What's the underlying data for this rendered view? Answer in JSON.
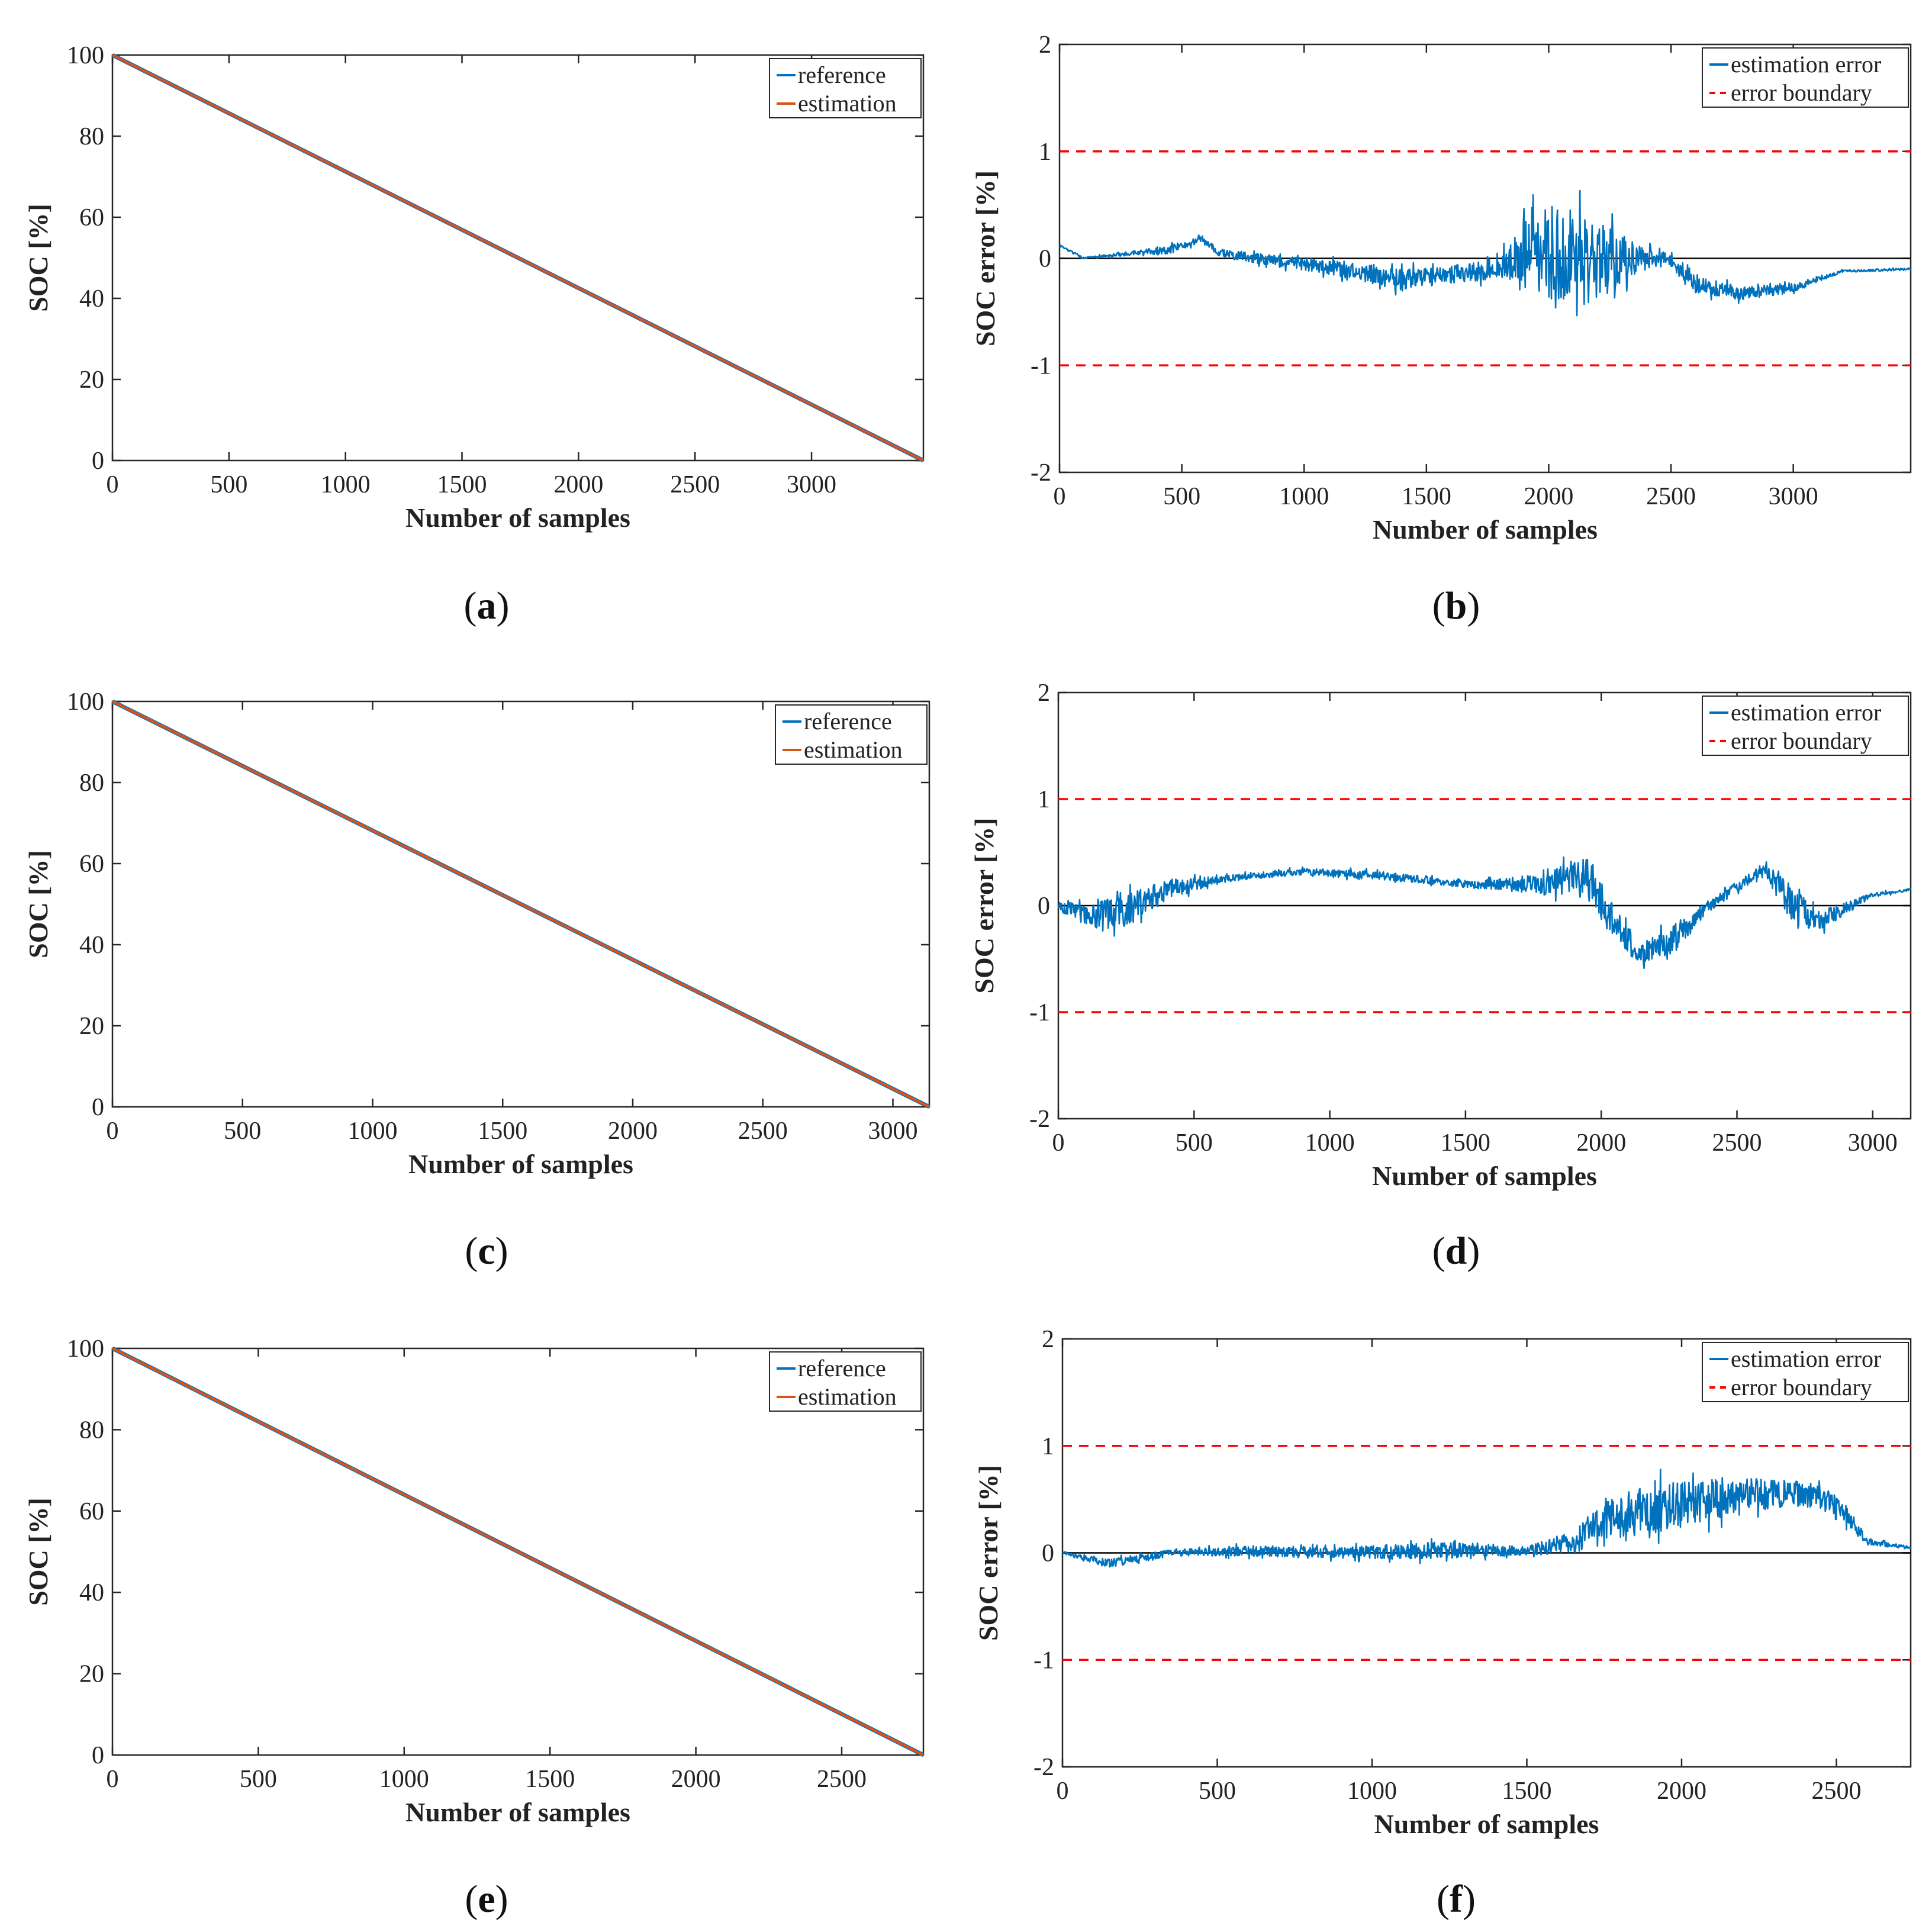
{
  "figure": {
    "panel_labels": [
      "a",
      "b",
      "c",
      "d",
      "e",
      "f"
    ],
    "colors": {
      "reference": "#0072BD",
      "estimation": "#D95319",
      "error": "#0072BD",
      "boundary": "#FF0000",
      "zero_line": "#000000"
    }
  },
  "chart_data": [
    {
      "id": "a",
      "type": "line",
      "xlabel": "Number of samples",
      "ylabel": "SOC [%]",
      "xlim": [
        0,
        3480
      ],
      "ylim": [
        0,
        100
      ],
      "xticks": [
        0,
        500,
        1000,
        1500,
        2000,
        2500,
        3000
      ],
      "yticks": [
        0,
        20,
        40,
        60,
        80,
        100
      ],
      "legend": {
        "position": "top-right",
        "entries": [
          "reference",
          "estimation"
        ]
      },
      "series": [
        {
          "name": "reference",
          "color": "#0072BD",
          "x": [
            0,
            3480
          ],
          "y": [
            100,
            0
          ]
        },
        {
          "name": "estimation",
          "color": "#D95319",
          "x": [
            0,
            3480
          ],
          "y": [
            100,
            0
          ]
        }
      ]
    },
    {
      "id": "b",
      "type": "line",
      "xlabel": "Number of samples",
      "ylabel": "SOC error [%]",
      "xlim": [
        0,
        3480
      ],
      "ylim": [
        -2,
        2
      ],
      "xticks": [
        0,
        500,
        1000,
        1500,
        2000,
        2500,
        3000
      ],
      "yticks": [
        -2,
        -1,
        0,
        1,
        2
      ],
      "legend": {
        "position": "top-right",
        "entries": [
          "estimation error",
          "error boundary"
        ]
      },
      "boundaries": [
        1,
        -1
      ],
      "zero_line": true,
      "series": [
        {
          "name": "estimation error",
          "color": "#0072BD",
          "x": [
            0,
            100,
            300,
            450,
            580,
            650,
            800,
            1000,
            1200,
            1400,
            1600,
            1800,
            1900,
            2050,
            2200,
            2350,
            2480,
            2600,
            2800,
            3000,
            3200,
            3480
          ],
          "y": [
            0.12,
            0.0,
            0.05,
            0.08,
            0.18,
            0.05,
            0.0,
            -0.05,
            -0.12,
            -0.2,
            -0.15,
            -0.1,
            0.0,
            0.05,
            -0.05,
            0.0,
            0.02,
            -0.25,
            -0.33,
            -0.28,
            -0.12,
            -0.1
          ],
          "noise": [
            0.01,
            0.01,
            0.02,
            0.04,
            0.03,
            0.03,
            0.05,
            0.06,
            0.08,
            0.1,
            0.08,
            0.1,
            0.35,
            0.45,
            0.4,
            0.15,
            0.06,
            0.08,
            0.06,
            0.04,
            0.01,
            0.01
          ]
        }
      ]
    },
    {
      "id": "c",
      "type": "line",
      "xlabel": "Number of samples",
      "ylabel": "SOC [%]",
      "xlim": [
        0,
        3140
      ],
      "ylim": [
        0,
        100
      ],
      "xticks": [
        0,
        500,
        1000,
        1500,
        2000,
        2500,
        3000
      ],
      "yticks": [
        0,
        20,
        40,
        60,
        80,
        100
      ],
      "legend": {
        "position": "top-right",
        "entries": [
          "reference",
          "estimation"
        ]
      },
      "series": [
        {
          "name": "reference",
          "color": "#0072BD",
          "x": [
            0,
            3140
          ],
          "y": [
            100,
            0
          ]
        },
        {
          "name": "estimation",
          "color": "#D95319",
          "x": [
            0,
            3140
          ],
          "y": [
            100,
            0
          ]
        }
      ]
    },
    {
      "id": "d",
      "type": "line",
      "xlabel": "Number of samples",
      "ylabel": "SOC error [%]",
      "xlim": [
        0,
        3140
      ],
      "ylim": [
        -2,
        2
      ],
      "xticks": [
        0,
        500,
        1000,
        1500,
        2000,
        2500,
        3000
      ],
      "yticks": [
        -2,
        -1,
        0,
        1,
        2
      ],
      "legend": {
        "position": "top-right",
        "entries": [
          "estimation error",
          "error boundary"
        ]
      },
      "boundaries": [
        1,
        -1
      ],
      "zero_line": true,
      "series": [
        {
          "name": "estimation error",
          "color": "#0072BD",
          "x": [
            0,
            100,
            250,
            400,
            600,
            900,
            1200,
            1500,
            1800,
            1950,
            2050,
            2150,
            2250,
            2400,
            2600,
            2700,
            2800,
            3000,
            3140
          ],
          "y": [
            0.0,
            -0.1,
            -0.05,
            0.15,
            0.25,
            0.32,
            0.28,
            0.2,
            0.2,
            0.3,
            -0.2,
            -0.45,
            -0.35,
            0.0,
            0.35,
            0.0,
            -0.15,
            0.1,
            0.15
          ],
          "noise": [
            0.04,
            0.12,
            0.15,
            0.1,
            0.03,
            0.03,
            0.04,
            0.03,
            0.1,
            0.2,
            0.15,
            0.1,
            0.15,
            0.05,
            0.05,
            0.2,
            0.1,
            0.02,
            0.01
          ]
        }
      ]
    },
    {
      "id": "e",
      "type": "line",
      "xlabel": "Number of samples",
      "ylabel": "SOC [%]",
      "xlim": [
        0,
        2780
      ],
      "ylim": [
        0,
        100
      ],
      "xticks": [
        0,
        500,
        1000,
        1500,
        2000,
        2500
      ],
      "yticks": [
        0,
        20,
        40,
        60,
        80,
        100
      ],
      "legend": {
        "position": "top-right",
        "entries": [
          "reference",
          "estimation"
        ]
      },
      "series": [
        {
          "name": "reference",
          "color": "#0072BD",
          "x": [
            0,
            2780
          ],
          "y": [
            100,
            0
          ]
        },
        {
          "name": "estimation",
          "color": "#D95319",
          "x": [
            0,
            2780
          ],
          "y": [
            100,
            0
          ]
        }
      ]
    },
    {
      "id": "f",
      "type": "line",
      "xlabel": "Number of samples",
      "ylabel": "SOC error [%]",
      "xlim": [
        0,
        2740
      ],
      "ylim": [
        -2,
        2
      ],
      "xticks": [
        0,
        500,
        1000,
        1500,
        2000,
        2500
      ],
      "yticks": [
        -2,
        -1,
        0,
        1,
        2
      ],
      "legend": {
        "position": "top-right",
        "entries": [
          "estimation error",
          "error boundary"
        ]
      },
      "boundaries": [
        1,
        -1
      ],
      "zero_line": true,
      "series": [
        {
          "name": "estimation error",
          "color": "#0072BD",
          "x": [
            0,
            150,
            350,
            600,
            900,
            1200,
            1500,
            1650,
            1800,
            2000,
            2200,
            2400,
            2500,
            2600,
            2740
          ],
          "y": [
            0.0,
            -0.1,
            0.0,
            0.02,
            0.0,
            0.02,
            0.02,
            0.1,
            0.35,
            0.45,
            0.55,
            0.55,
            0.45,
            0.1,
            0.05
          ],
          "noise": [
            0.01,
            0.04,
            0.03,
            0.05,
            0.05,
            0.08,
            0.04,
            0.1,
            0.25,
            0.22,
            0.15,
            0.12,
            0.1,
            0.03,
            0.01
          ]
        }
      ]
    }
  ]
}
